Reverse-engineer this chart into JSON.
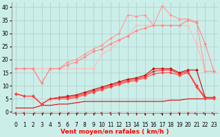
{
  "x": [
    0,
    1,
    2,
    3,
    4,
    5,
    6,
    7,
    8,
    9,
    10,
    11,
    12,
    13,
    14,
    15,
    16,
    17,
    18,
    19,
    20,
    21,
    22,
    23
  ],
  "background_color": "#cceee8",
  "grid_color": "#aacccc",
  "xlabel": "Vent moyen/en rafales ( km/h )",
  "ylabel_ticks": [
    0,
    5,
    10,
    15,
    20,
    25,
    30,
    35,
    40
  ],
  "ylim": [
    -0.5,
    42
  ],
  "xlim": [
    -0.5,
    23.5
  ],
  "tick_fontsize": 5.5,
  "axis_label_fontsize": 6.5,
  "series": [
    {
      "y": [
        16.5,
        16.5,
        16.5,
        16.5,
        16.5,
        16.5,
        16.5,
        16.5,
        16.5,
        16.5,
        22,
        24,
        27,
        29,
        33,
        33,
        33,
        33,
        33,
        33,
        33,
        26,
        15.5,
        15.5
      ],
      "color": "#ffbbbb",
      "marker": "D",
      "markersize": 2.0,
      "lw": 0.8,
      "zorder": 2
    },
    {
      "y": [
        16.5,
        16.5,
        16.5,
        11,
        16.5,
        16.5,
        19,
        20,
        22,
        24,
        25.5,
        28,
        30,
        37,
        36.5,
        37,
        33,
        40.5,
        37,
        35.5,
        35.5,
        34.5,
        15.5,
        15.5
      ],
      "color": "#ff9999",
      "marker": "D",
      "markersize": 2.0,
      "lw": 0.8,
      "zorder": 2
    },
    {
      "y": [
        16.5,
        16.5,
        16.5,
        11,
        16.5,
        16.5,
        18,
        19,
        21,
        23,
        24,
        26,
        27.5,
        29,
        31,
        32,
        33,
        33,
        33,
        33,
        35,
        34,
        26,
        15.5
      ],
      "color": "#ff8888",
      "marker": "D",
      "markersize": 2.0,
      "lw": 0.8,
      "zorder": 2
    },
    {
      "y": [
        7,
        6,
        6,
        3,
        5,
        5.5,
        6,
        6.5,
        7.5,
        8.5,
        9.5,
        10.5,
        11.5,
        12.5,
        13,
        14,
        16.5,
        16.5,
        16.5,
        15,
        16,
        16,
        5.5,
        5.5
      ],
      "color": "#cc0000",
      "marker": "D",
      "markersize": 2.0,
      "lw": 0.8,
      "zorder": 3
    },
    {
      "y": [
        7,
        6,
        6,
        3,
        5,
        5.5,
        5.5,
        6,
        7,
        8,
        9,
        10,
        11,
        12,
        12.5,
        13.5,
        15.5,
        16,
        16,
        14.5,
        15.5,
        10,
        5.5,
        5.5
      ],
      "color": "#ff2222",
      "marker": "D",
      "markersize": 2.0,
      "lw": 0.8,
      "zorder": 3
    },
    {
      "y": [
        7,
        6,
        6,
        3,
        5,
        5,
        5,
        5.5,
        6.5,
        7.5,
        8.5,
        9.5,
        10.5,
        11.5,
        12,
        13,
        14.5,
        15,
        15,
        14,
        15,
        9.5,
        5,
        5
      ],
      "color": "#ff4444",
      "marker": "D",
      "markersize": 2.0,
      "lw": 0.8,
      "zorder": 3
    },
    {
      "y": [
        1.5,
        1.5,
        1.5,
        2.5,
        2.5,
        3,
        3,
        3.5,
        4,
        4,
        4,
        4,
        4,
        4,
        4,
        4,
        4,
        4,
        4.5,
        4.5,
        5,
        5,
        5,
        5
      ],
      "color": "#dd0000",
      "marker": null,
      "markersize": 0,
      "lw": 0.8,
      "zorder": 2
    }
  ],
  "arrow_angles": [
    -135,
    -120,
    -110,
    -105,
    -100,
    -95,
    -90,
    -85,
    -75,
    -65,
    -55,
    -45,
    -35,
    -25,
    -15,
    -5,
    5,
    15,
    25,
    35,
    50,
    65,
    80,
    100
  ],
  "arrow_color": "#dd0000"
}
